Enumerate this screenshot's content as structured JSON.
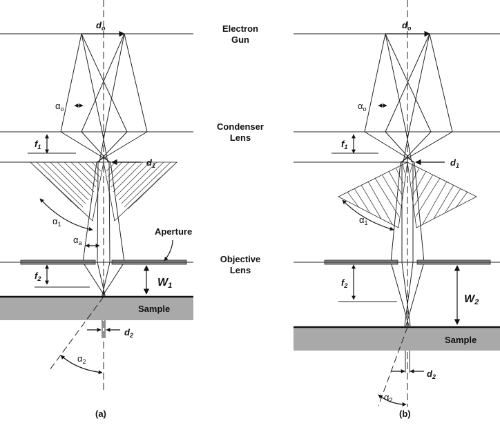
{
  "labels": {
    "electron": "Electron",
    "gun": "Gun",
    "condenser": "Condenser",
    "lens": "Lens",
    "objective": "Objective",
    "lens2": "Lens",
    "aperture": "Aperture",
    "sample_a": "Sample",
    "sample_b": "Sample",
    "caption_a": "(a)",
    "caption_b": "(b)"
  },
  "panel_a": {
    "d_sym": "d",
    "d_o_sub": "o",
    "alpha_o": "α",
    "alpha_o_sub": "o",
    "f1": "f",
    "f1_sub": "1",
    "d1": "d",
    "d1_sub": "1",
    "alpha1": "α",
    "alpha1_sub": "1",
    "alpha_a": "α",
    "alpha_a_sub": "a",
    "f2": "f",
    "f2_sub": "2",
    "W": "W",
    "W_sub": "1",
    "d2": "d",
    "d2_sub": "2",
    "alpha2": "α",
    "alpha2_sub": "2"
  },
  "panel_b": {
    "d_sym": "d",
    "d_o_sub": "o",
    "alpha_o": "α",
    "alpha_o_sub": "o",
    "f1": "f",
    "f1_sub": "1",
    "d1": "d",
    "d1_sub": "1",
    "alpha1": "α",
    "alpha1_sub": "1",
    "f2": "f",
    "f2_sub": "2",
    "W": "W",
    "W_sub": "2",
    "d2": "d",
    "d2_sub": "2",
    "alpha2": "α",
    "alpha2_sub": "2"
  },
  "colors": {
    "sample_fill": "#a9a9a9",
    "aperture_fill": "#8f8f8f",
    "line": "#222222"
  }
}
